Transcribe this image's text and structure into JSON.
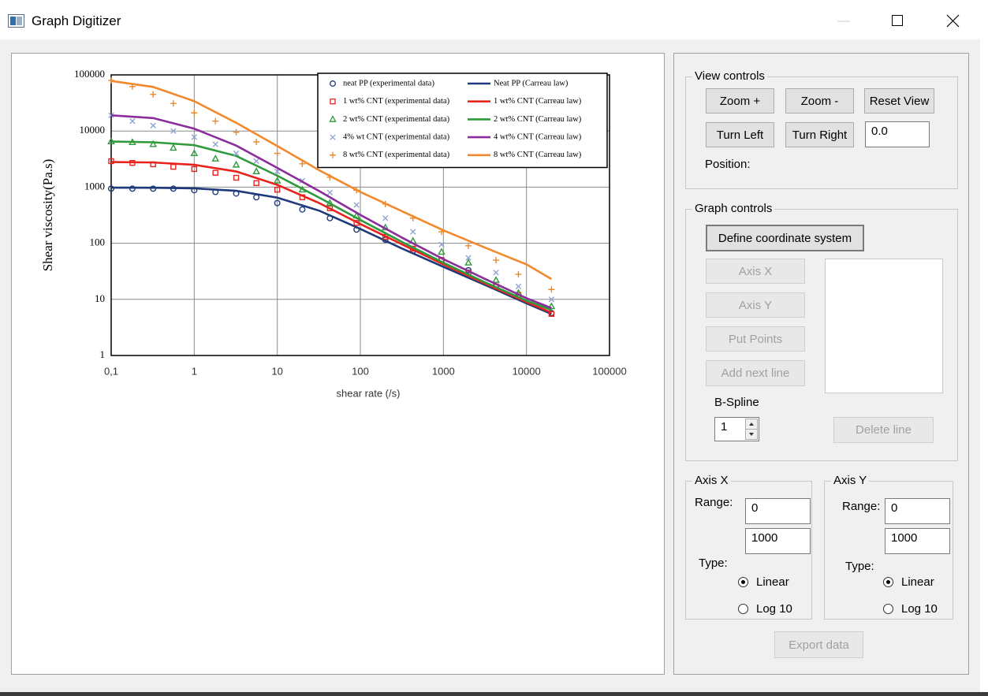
{
  "window": {
    "title": "Graph Digitizer"
  },
  "chart_data": {
    "type": "line",
    "x_label": "shear rate (/s)",
    "y_label": "Shear viscosity(Pa.s)",
    "log_x": true,
    "log_y": true,
    "grid": true,
    "legend": "upper right",
    "xlim": [
      0.1,
      100000
    ],
    "ylim": [
      1,
      100000
    ],
    "xticks": [
      {
        "value": 0.1,
        "label": "0,1"
      },
      1,
      10,
      100,
      1000,
      10000,
      100000
    ],
    "yticks": [
      1,
      10,
      100,
      1000,
      10000,
      100000
    ],
    "series": [
      {
        "name": "neat PP (experimental data)",
        "color": "#1f3a7a",
        "marker": "circle",
        "x": [
          0.1,
          0.18,
          0.32,
          0.56,
          1,
          1.8,
          3.2,
          5.6,
          10,
          20,
          43,
          90,
          200,
          430,
          950,
          2000,
          4300,
          8000,
          20000
        ],
        "values": [
          940,
          940,
          940,
          940,
          880,
          820,
          770,
          660,
          520,
          400,
          280,
          175,
          115,
          73,
          50,
          33,
          17,
          11,
          5.7
        ]
      },
      {
        "name": "Neat PP (Carreau law)",
        "color": "#1f3a7a",
        "marker": "line",
        "x": [
          0.1,
          0.32,
          1,
          3.2,
          10,
          32,
          100,
          320,
          1000,
          3200,
          10000,
          20000
        ],
        "values": [
          980,
          975,
          950,
          860,
          650,
          380,
          180,
          80,
          38,
          18,
          8.5,
          5.5
        ]
      },
      {
        "name": "1 wt% CNT (experimental data)",
        "color": "#e8231e",
        "marker": "square",
        "x": [
          0.1,
          0.18,
          0.32,
          0.56,
          1,
          1.8,
          3.2,
          5.6,
          10,
          20,
          43,
          90,
          200,
          430,
          950,
          2000,
          4300,
          8000,
          20000
        ],
        "values": [
          2900,
          2700,
          2550,
          2300,
          2100,
          1800,
          1470,
          1180,
          900,
          660,
          420,
          230,
          130,
          80,
          50,
          30,
          17,
          12,
          5.5
        ]
      },
      {
        "name": "1 wt% CNT (Carreau law)",
        "color": "#e8231e",
        "marker": "line",
        "x": [
          0.1,
          0.32,
          1,
          3.2,
          10,
          32,
          100,
          320,
          1000,
          3200,
          10000,
          20000
        ],
        "values": [
          2800,
          2750,
          2500,
          1900,
          1100,
          520,
          220,
          95,
          42,
          19,
          9,
          5.8
        ]
      },
      {
        "name": "2 wt% CNT (experimental data)",
        "color": "#2e9a3c",
        "marker": "triangle",
        "x": [
          0.1,
          0.18,
          0.32,
          0.56,
          1,
          1.8,
          3.2,
          5.6,
          10,
          20,
          43,
          90,
          200,
          430,
          950,
          2000,
          4300,
          8000,
          20000
        ],
        "values": [
          6500,
          6300,
          5800,
          5000,
          4000,
          3200,
          2500,
          1900,
          1300,
          900,
          520,
          310,
          190,
          110,
          70,
          45,
          22,
          13,
          7.5
        ]
      },
      {
        "name": "2 wt% CNT (Carreau law)",
        "color": "#2e9a3c",
        "marker": "line",
        "x": [
          0.1,
          0.32,
          1,
          3.2,
          10,
          32,
          100,
          320,
          1000,
          3200,
          10000,
          20000
        ],
        "values": [
          6500,
          6300,
          5600,
          3600,
          1600,
          650,
          260,
          105,
          45,
          20,
          9.5,
          6.5
        ]
      },
      {
        "name": "4% wt CNT (experimental data)",
        "color": "#8fa3d4",
        "marker": "x",
        "x": [
          0.1,
          0.18,
          0.32,
          0.56,
          1,
          1.8,
          3.2,
          5.6,
          10,
          20,
          43,
          90,
          200,
          430,
          950,
          2000,
          4300,
          8000,
          20000
        ],
        "values": [
          19000,
          15000,
          12500,
          10000,
          7800,
          5800,
          4000,
          2900,
          1900,
          1300,
          800,
          480,
          280,
          160,
          95,
          55,
          30,
          17,
          10
        ]
      },
      {
        "name": "4 wt% CNT (Carreau law)",
        "color": "#8b2d9b",
        "marker": "line",
        "x": [
          0.1,
          0.32,
          1,
          3.2,
          10,
          32,
          100,
          320,
          1000,
          3200,
          10000,
          20000
        ],
        "values": [
          19000,
          17000,
          11000,
          5500,
          2200,
          850,
          320,
          125,
          52,
          23,
          10.5,
          7
        ]
      },
      {
        "name": "8 wt% CNT (experimental data)",
        "color": "#e8892c",
        "marker": "plus",
        "x": [
          0.1,
          0.18,
          0.32,
          0.56,
          1,
          1.8,
          3.2,
          5.6,
          10,
          20,
          43,
          90,
          200,
          430,
          950,
          2000,
          4300,
          8000,
          20000
        ],
        "values": [
          80000,
          62000,
          45000,
          31000,
          21000,
          15000,
          9500,
          6400,
          4000,
          2600,
          1500,
          880,
          500,
          280,
          160,
          90,
          50,
          28,
          15
        ]
      },
      {
        "name": "8 wt% CNT (Carreau law)",
        "color": "#f28a2c",
        "marker": "line",
        "x": [
          0.1,
          0.32,
          1,
          3.2,
          10,
          32,
          100,
          320,
          1000,
          3200,
          10000,
          20000
        ],
        "values": [
          78000,
          61000,
          34000,
          14000,
          5400,
          2000,
          820,
          370,
          170,
          83,
          42,
          23
        ]
      }
    ]
  },
  "view_controls": {
    "title": "View controls",
    "buttons": [
      "Zoom +",
      "Zoom -",
      "Reset View",
      "Turn Left",
      "Turn Right"
    ],
    "angle": "0.0",
    "position_label": "Position:"
  },
  "graph_controls": {
    "title": "Graph controls",
    "define": "Define coordinate system",
    "buttons": [
      "Axis X",
      "Axis Y",
      "Put Points",
      "Add next line"
    ],
    "spline_label": "B-Spline",
    "spline_value": "1",
    "delete": "Delete line"
  },
  "axis_x": {
    "title": "Axis X",
    "range_label": "Range:",
    "min": "0",
    "max": "1000",
    "type_label": "Type:",
    "options": [
      "Linear",
      "Log 10"
    ],
    "selected": 0
  },
  "axis_y": {
    "title": "Axis Y",
    "range_label": "Range:",
    "min": "0",
    "max": "1000",
    "type_label": "Type:",
    "options": [
      "Linear",
      "Log 10"
    ],
    "selected": 0
  },
  "export": "Export data"
}
